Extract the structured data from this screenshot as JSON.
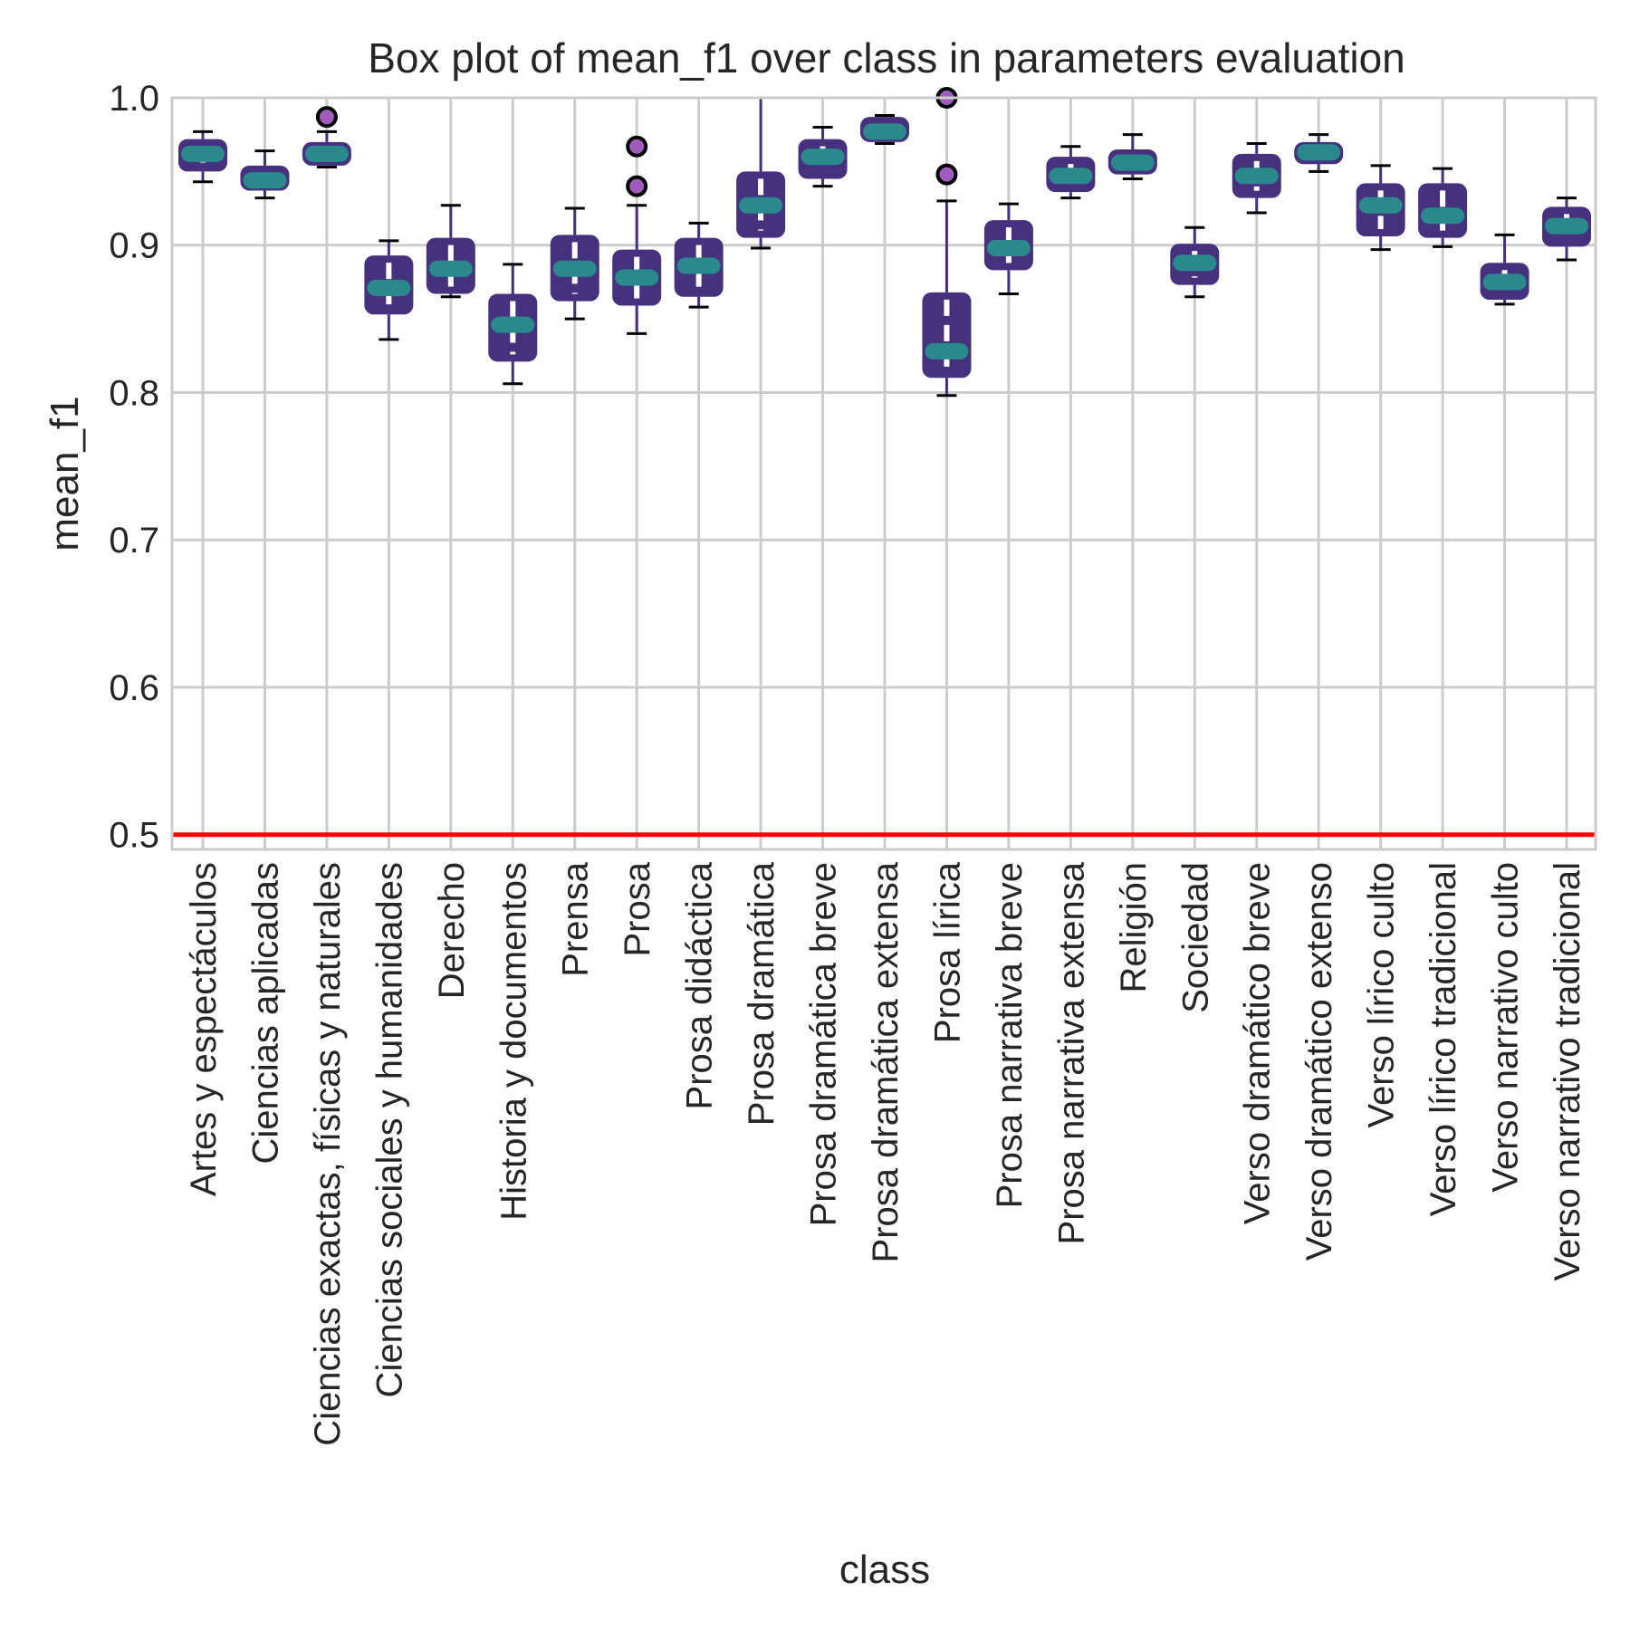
{
  "chart_data": {
    "type": "box",
    "title": "Box plot of mean_f1 over class in parameters evaluation",
    "xlabel": "class",
    "ylabel": "mean_f1",
    "ylim": [
      0.49,
      1.0
    ],
    "yticks": [
      "0.5",
      "0.6",
      "0.7",
      "0.8",
      "0.9",
      "1.0"
    ],
    "grid": true,
    "reference_line": {
      "y": 0.5,
      "color": "#ff0000"
    },
    "colors": {
      "box": "#46317f",
      "median": "#2a8a8b",
      "whisker": "#46317f",
      "cap": "#000000",
      "outlier_fill": "#a05cbc",
      "grid": "#cccccc"
    },
    "categories": [
      "Artes y espectáculos",
      "Ciencias aplicadas",
      "Ciencias exactas, físicas y naturales",
      "Ciencias sociales y humanidades",
      "Derecho",
      "Historia y documentos",
      "Prensa",
      "Prosa",
      "Prosa didáctica",
      "Prosa dramática",
      "Prosa dramática breve",
      "Prosa dramática extensa",
      "Prosa lírica",
      "Prosa narrativa breve",
      "Prosa narrativa extensa",
      "Religión",
      "Sociedad",
      "Verso dramático breve",
      "Verso dramático extenso",
      "Verso lírico culto",
      "Verso lírico tradicional",
      "Verso narrativo culto",
      "Verso narrativo tradicional"
    ],
    "boxes": [
      {
        "whislo": 0.943,
        "q1": 0.95,
        "med": 0.962,
        "q3": 0.972,
        "whishi": 0.977,
        "fliers": []
      },
      {
        "whislo": 0.932,
        "q1": 0.937,
        "med": 0.944,
        "q3": 0.954,
        "whishi": 0.964,
        "fliers": []
      },
      {
        "whislo": 0.953,
        "q1": 0.954,
        "med": 0.962,
        "q3": 0.97,
        "whishi": 0.977,
        "fliers": [
          0.987
        ]
      },
      {
        "whislo": 0.836,
        "q1": 0.853,
        "med": 0.871,
        "q3": 0.893,
        "whishi": 0.903,
        "fliers": []
      },
      {
        "whislo": 0.865,
        "q1": 0.867,
        "med": 0.884,
        "q3": 0.905,
        "whishi": 0.927,
        "fliers": []
      },
      {
        "whislo": 0.806,
        "q1": 0.821,
        "med": 0.846,
        "q3": 0.867,
        "whishi": 0.887,
        "fliers": []
      },
      {
        "whislo": 0.85,
        "q1": 0.862,
        "med": 0.884,
        "q3": 0.907,
        "whishi": 0.925,
        "fliers": []
      },
      {
        "whislo": 0.84,
        "q1": 0.859,
        "med": 0.878,
        "q3": 0.897,
        "whishi": 0.927,
        "fliers": [
          0.967,
          0.94
        ]
      },
      {
        "whislo": 0.858,
        "q1": 0.865,
        "med": 0.886,
        "q3": 0.905,
        "whishi": 0.915,
        "fliers": []
      },
      {
        "whislo": 0.898,
        "q1": 0.905,
        "med": 0.927,
        "q3": 0.95,
        "whishi": 1.0,
        "fliers": []
      },
      {
        "whislo": 0.94,
        "q1": 0.945,
        "med": 0.96,
        "q3": 0.972,
        "whishi": 0.98,
        "fliers": []
      },
      {
        "whislo": 0.969,
        "q1": 0.97,
        "med": 0.977,
        "q3": 0.987,
        "whishi": 0.988,
        "fliers": []
      },
      {
        "whislo": 0.798,
        "q1": 0.81,
        "med": 0.828,
        "q3": 0.868,
        "whishi": 0.93,
        "fliers": [
          1.0,
          0.948
        ]
      },
      {
        "whislo": 0.867,
        "q1": 0.883,
        "med": 0.898,
        "q3": 0.917,
        "whishi": 0.928,
        "fliers": []
      },
      {
        "whislo": 0.932,
        "q1": 0.936,
        "med": 0.947,
        "q3": 0.96,
        "whishi": 0.967,
        "fliers": []
      },
      {
        "whislo": 0.945,
        "q1": 0.948,
        "med": 0.956,
        "q3": 0.965,
        "whishi": 0.975,
        "fliers": []
      },
      {
        "whislo": 0.865,
        "q1": 0.873,
        "med": 0.888,
        "q3": 0.901,
        "whishi": 0.912,
        "fliers": []
      },
      {
        "whislo": 0.922,
        "q1": 0.932,
        "med": 0.947,
        "q3": 0.962,
        "whishi": 0.969,
        "fliers": []
      },
      {
        "whislo": 0.95,
        "q1": 0.955,
        "med": 0.963,
        "q3": 0.97,
        "whishi": 0.975,
        "fliers": []
      },
      {
        "whislo": 0.897,
        "q1": 0.906,
        "med": 0.927,
        "q3": 0.942,
        "whishi": 0.954,
        "fliers": []
      },
      {
        "whislo": 0.899,
        "q1": 0.905,
        "med": 0.92,
        "q3": 0.942,
        "whishi": 0.952,
        "fliers": []
      },
      {
        "whislo": 0.86,
        "q1": 0.863,
        "med": 0.875,
        "q3": 0.888,
        "whishi": 0.907,
        "fliers": []
      },
      {
        "whislo": 0.89,
        "q1": 0.899,
        "med": 0.913,
        "q3": 0.926,
        "whishi": 0.932,
        "fliers": []
      }
    ]
  }
}
